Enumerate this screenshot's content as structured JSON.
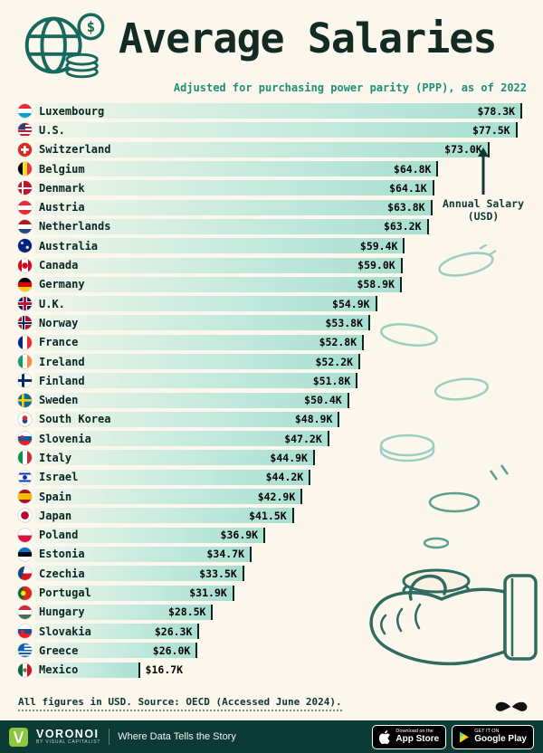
{
  "header": {
    "title": "Average Salaries",
    "subtitle": "Adjusted for purchasing power parity (PPP), as of 2022"
  },
  "annotation": {
    "label": "Annual Salary (USD)"
  },
  "chart_data": {
    "type": "bar",
    "orientation": "horizontal",
    "title": "Average Salaries",
    "subtitle": "Adjusted for purchasing power parity (PPP), as of 2022",
    "unit": "USD thousands, PPP-adjusted, 2022",
    "xlim": [
      0,
      79.6
    ],
    "countries": [
      {
        "name": "Luxembourg",
        "value": 78.3,
        "label": "$78.3K",
        "flag": "linear-gradient(180deg,#ED2939 33%,#fff 33% 66%,#00A1DE 66%)"
      },
      {
        "name": "U.S.",
        "value": 77.5,
        "label": "$77.5K",
        "flag": "linear-gradient(#3C3B6E,#3C3B6E) 0% 0%/55% 50% no-repeat, repeating-linear-gradient(180deg,#B22234 0 2px,#fff 2px 4px)"
      },
      {
        "name": "Switzerland",
        "value": 73.0,
        "label": "$73.0K",
        "flag": "linear-gradient(#fff,#fff) center/58% 18% no-repeat, linear-gradient(#fff,#fff) center/18% 58% no-repeat, #DA291C"
      },
      {
        "name": "Belgium",
        "value": 64.8,
        "label": "$64.8K",
        "flag": "linear-gradient(90deg,#000 33%,#FDDA24 33% 66%,#EF3340 66%)"
      },
      {
        "name": "Denmark",
        "value": 64.1,
        "label": "$64.1K",
        "flag": "linear-gradient(#fff,#fff) 0% 50%/100% 16% no-repeat, linear-gradient(#fff,#fff) 35% 0%/16% 100% no-repeat, #C8102E"
      },
      {
        "name": "Austria",
        "value": 63.8,
        "label": "$63.8K",
        "flag": "linear-gradient(180deg,#ED2939 33%,#fff 33% 66%,#ED2939 66%)"
      },
      {
        "name": "Netherlands",
        "value": 63.2,
        "label": "$63.2K",
        "flag": "linear-gradient(180deg,#AE1C28 33%,#fff 33% 66%,#21468B 66%)"
      },
      {
        "name": "Australia",
        "value": 59.4,
        "label": "$59.4K",
        "flag": "radial-gradient(circle at 68% 62%, #fff 0 1.3px, transparent 2px), radial-gradient(circle at 30% 30%, #fff 0 1.1px, transparent 1.8px), #00247D"
      },
      {
        "name": "Canada",
        "value": 59.0,
        "label": "$59.0K",
        "flag": "radial-gradient(circle at 50% 50%, #D80621 0 3px, transparent 3.5px), linear-gradient(90deg,#D80621 28%,#fff 28% 72%,#D80621 72%)"
      },
      {
        "name": "Germany",
        "value": 58.9,
        "label": "$58.9K",
        "flag": "linear-gradient(180deg,#000 33%,#DD0000 33% 66%,#FFCE00 66%)"
      },
      {
        "name": "U.K.",
        "value": 54.9,
        "label": "$54.9K",
        "flag": "linear-gradient(#C8102E,#C8102E) 50% 50%/100% 22% no-repeat, linear-gradient(#C8102E,#C8102E) 50% 50%/22% 100% no-repeat, linear-gradient(#fff,#fff) 50% 50%/100% 36% no-repeat, linear-gradient(#fff,#fff) 50% 50%/36% 100% no-repeat, #012169"
      },
      {
        "name": "Norway",
        "value": 53.8,
        "label": "$53.8K",
        "flag": "linear-gradient(#002868,#002868) 0% 50%/100% 14% no-repeat, linear-gradient(#002868,#002868) 35% 0%/14% 100% no-repeat, linear-gradient(#fff,#fff) 0% 50%/100% 26% no-repeat, linear-gradient(#fff,#fff) 35% 0%/26% 100% no-repeat, #BA0C2F"
      },
      {
        "name": "France",
        "value": 52.8,
        "label": "$52.8K",
        "flag": "linear-gradient(90deg,#002395 33%,#fff 33% 66%,#ED2939 66%)"
      },
      {
        "name": "Ireland",
        "value": 52.2,
        "label": "$52.2K",
        "flag": "linear-gradient(90deg,#169B62 33%,#fff 33% 66%,#FF883E 66%)"
      },
      {
        "name": "Finland",
        "value": 51.8,
        "label": "$51.8K",
        "flag": "linear-gradient(#002F6C,#002F6C) 0% 50%/100% 20% no-repeat, linear-gradient(#002F6C,#002F6C) 35% 0%/20% 100% no-repeat, #fff"
      },
      {
        "name": "Sweden",
        "value": 50.4,
        "label": "$50.4K",
        "flag": "linear-gradient(#FECC02,#FECC02) 0% 50%/100% 18% no-repeat, linear-gradient(#FECC02,#FECC02) 35% 0%/18% 100% no-repeat, #006AA7"
      },
      {
        "name": "South Korea",
        "value": 48.9,
        "label": "$48.9K",
        "flag": "radial-gradient(circle at 50% 40%, #CD2E3A 0 2.6px, transparent 3px), radial-gradient(circle at 50% 60%, #0047A0 0 2.6px, transparent 3px), #fff"
      },
      {
        "name": "Slovenia",
        "value": 47.2,
        "label": "$47.2K",
        "flag": "radial-gradient(circle at 30% 38%, #ED1C24 0 1.6px, transparent 2px), linear-gradient(180deg,#fff 33%,#005DA4 33% 66%,#ED1C24 66%)"
      },
      {
        "name": "Italy",
        "value": 44.9,
        "label": "$44.9K",
        "flag": "linear-gradient(90deg,#009246 33%,#fff 33% 66%,#CE2B37 66%)"
      },
      {
        "name": "Israel",
        "value": 44.2,
        "label": "$44.2K",
        "flag": "radial-gradient(circle at 50% 50%, #0038B8 0 2.2px, transparent 2.7px), linear-gradient(180deg,#fff 16%,#0038B8 16% 30%,#fff 30% 70%,#0038B8 70% 84%,#fff 84%)"
      },
      {
        "name": "Spain",
        "value": 42.9,
        "label": "$42.9K",
        "flag": "linear-gradient(180deg,#AA151B 26%,#F1BF00 26% 74%,#AA151B 74%)"
      },
      {
        "name": "Japan",
        "value": 41.5,
        "label": "$41.5K",
        "flag": "radial-gradient(circle at 50% 50%, #BC002D 0 4px, transparent 4.6px), #fff"
      },
      {
        "name": "Poland",
        "value": 36.9,
        "label": "$36.9K",
        "flag": "linear-gradient(180deg,#fff 50%,#DC143C 50%)"
      },
      {
        "name": "Estonia",
        "value": 34.7,
        "label": "$34.7K",
        "flag": "linear-gradient(180deg,#0072CE 33%,#000 33% 66%,#fff 66%)"
      },
      {
        "name": "Czechia",
        "value": 33.5,
        "label": "$33.5K",
        "flag": "linear-gradient(105deg,#11457E 38%,transparent 38.5%), linear-gradient(180deg,#fff 50%,#D7141A 50%)"
      },
      {
        "name": "Portugal",
        "value": 31.9,
        "label": "$31.9K",
        "flag": "radial-gradient(circle at 38% 50%, #FFE900 0 2.4px, transparent 3px), linear-gradient(90deg,#046A38 38%,#DA291C 38%)"
      },
      {
        "name": "Hungary",
        "value": 28.5,
        "label": "$28.5K",
        "flag": "linear-gradient(180deg,#CE2939 33%,#fff 33% 66%,#477050 66%)"
      },
      {
        "name": "Slovakia",
        "value": 26.3,
        "label": "$26.3K",
        "flag": "radial-gradient(circle at 33% 55%, #EE1C25 0 2px, transparent 2.5px), linear-gradient(180deg,#fff 33%,#0B4EA2 33% 66%,#EE1C25 66%)"
      },
      {
        "name": "Greece",
        "value": 26.0,
        "label": "$26.0K",
        "flag": "linear-gradient(#0D5EAF,#0D5EAF) 0% 0%/45% 50% no-repeat, repeating-linear-gradient(180deg,#0D5EAF 0 1.7px,#fff 1.7px 3.4px)"
      },
      {
        "name": "Mexico",
        "value": 16.7,
        "label": "$16.7K",
        "label_outside": true,
        "flag": "radial-gradient(circle at 50% 50%, #8A6D3B 0 2px, transparent 2.5px), linear-gradient(90deg,#006847 33%,#fff 33% 66%,#CE1126 66%)"
      }
    ]
  },
  "footer": {
    "note": "All figures in USD. Source: OECD (Accessed June 2024).",
    "bar": {
      "brand": "VORONOI",
      "brand_sub": "BY VISUAL CAPITALIST",
      "tagline": "Where Data Tells the Story",
      "appstore_top": "Download on the",
      "appstore_bottom": "App Store",
      "googleplay_top": "GET IT ON",
      "googleplay_bottom": "Google Play"
    }
  },
  "colors": {
    "background": "#FBF7EC",
    "bar_fill": "#BCE8DD",
    "bar_end_cap": "#0D2420",
    "title_ink": "#132A25",
    "subtitle_teal": "#1F8E7B",
    "annotation_ink": "#0E3A33",
    "footer_bar_bg": "#0C3A34",
    "logo_green": "#8DC63F",
    "decor_teal": "#93C9BC",
    "hand_teal": "#2F6B5F"
  }
}
